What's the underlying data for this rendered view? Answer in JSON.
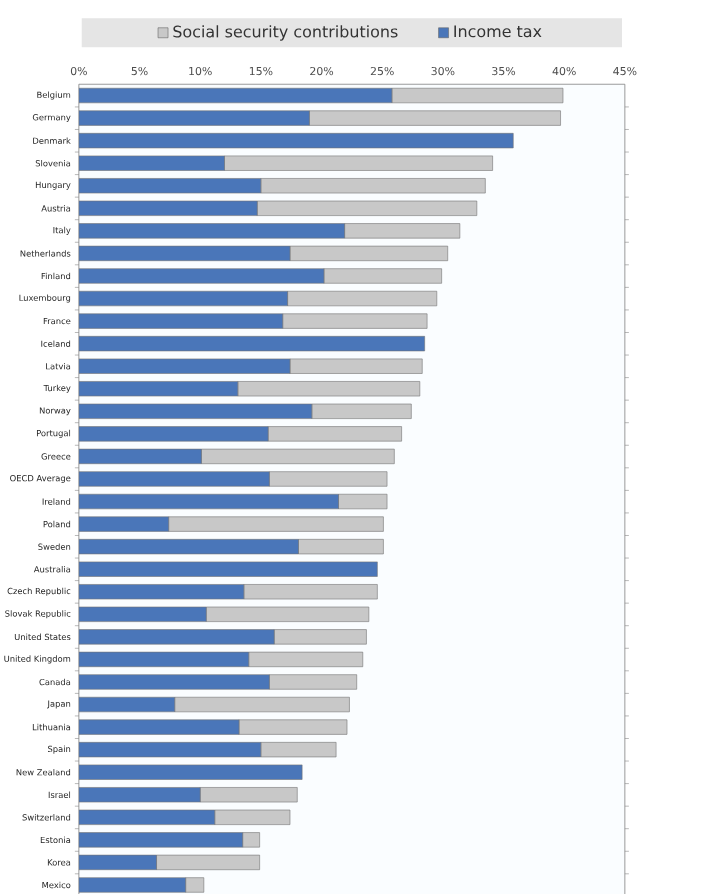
{
  "chart_data": {
    "type": "bar",
    "orientation": "horizontal",
    "stacked": true,
    "legend": "top",
    "categories": [
      "Belgium",
      "Germany",
      "Denmark",
      "Slovenia",
      "Hungary",
      "Austria",
      "Italy",
      "Netherlands",
      "Finland",
      "Luxembourg",
      "France",
      "Iceland",
      "Latvia",
      "Turkey",
      "Norway",
      "Portugal",
      "Greece",
      "OECD Average",
      "Ireland",
      "Poland",
      "Sweden",
      "Australia",
      "Czech Republic",
      "Slovak Republic",
      "United States",
      "United Kingdom",
      "Canada",
      "Japan",
      "Lithuania",
      "Spain",
      "New Zealand",
      "Israel",
      "Switzerland",
      "Estonia",
      "Korea",
      "Mexico"
    ],
    "series": [
      {
        "name": "Income tax",
        "color": "#4a76b9",
        "values": [
          25.8,
          19.0,
          35.8,
          12.0,
          15.0,
          14.7,
          21.9,
          17.4,
          20.2,
          17.2,
          16.8,
          28.5,
          17.4,
          13.1,
          19.2,
          15.6,
          10.1,
          15.7,
          21.4,
          7.4,
          18.1,
          24.6,
          13.6,
          10.5,
          16.1,
          14.0,
          15.7,
          7.9,
          13.2,
          15.0,
          18.4,
          10.0,
          11.2,
          13.5,
          6.4,
          8.8
        ]
      },
      {
        "name": "Social security contributions",
        "color": "#c8c8c8",
        "values": [
          14.1,
          20.7,
          0,
          22.1,
          18.5,
          18.1,
          9.5,
          13.0,
          9.7,
          12.3,
          11.9,
          0,
          10.9,
          15.0,
          8.2,
          11.0,
          15.9,
          9.7,
          4.0,
          17.7,
          7.0,
          0,
          11.0,
          13.4,
          7.6,
          9.4,
          7.2,
          14.4,
          8.9,
          6.2,
          0,
          8.0,
          6.2,
          1.4,
          8.5,
          1.5
        ]
      }
    ],
    "xlim": [
      0,
      45
    ],
    "xticks": [
      {
        "value": 0,
        "label": "0%"
      },
      {
        "value": 5,
        "label": "5%"
      },
      {
        "value": 10,
        "label": "10%"
      },
      {
        "value": 15,
        "label": "15%"
      },
      {
        "value": 20,
        "label": "20%"
      },
      {
        "value": 25,
        "label": "25%"
      },
      {
        "value": 30,
        "label": "30%"
      },
      {
        "value": 35,
        "label": "35%"
      },
      {
        "value": 40,
        "label": "40%"
      },
      {
        "value": 45,
        "label": "45%"
      }
    ]
  }
}
